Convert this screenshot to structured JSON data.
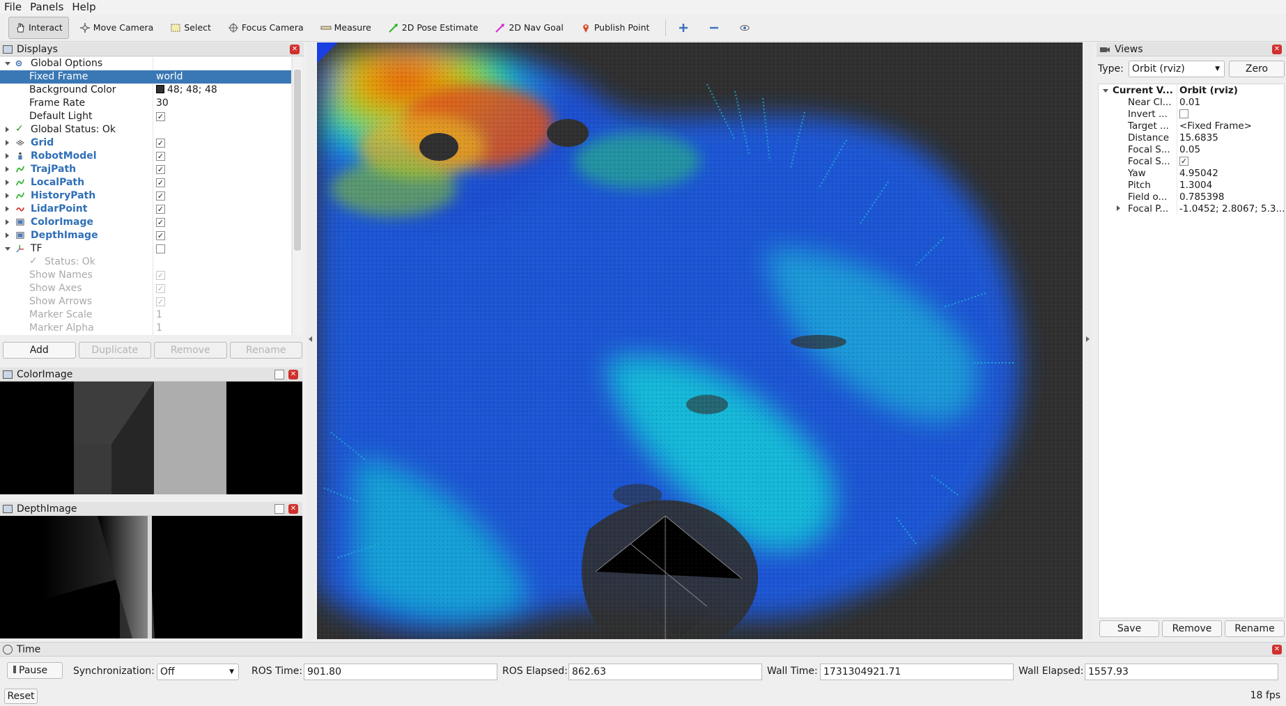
{
  "menu": {
    "file": "File",
    "panels": "Panels",
    "help": "Help"
  },
  "toolbar": {
    "interact": "Interact",
    "move_camera": "Move Camera",
    "select": "Select",
    "focus_camera": "Focus Camera",
    "measure": "Measure",
    "pose_estimate": "2D Pose Estimate",
    "nav_goal": "2D Nav Goal",
    "publish_point": "Publish Point"
  },
  "displays": {
    "title": "Displays",
    "global_options": "Global Options",
    "fixed_frame_label": "Fixed Frame",
    "fixed_frame_value": "world",
    "bg_color_label": "Background Color",
    "bg_color_value": "48; 48; 48",
    "frame_rate_label": "Frame Rate",
    "frame_rate_value": "30",
    "default_light_label": "Default Light",
    "global_status": "Global Status: Ok",
    "items": [
      "Grid",
      "RobotModel",
      "TrajPath",
      "LocalPath",
      "HistoryPath",
      "LidarPoint",
      "ColorImage",
      "DepthImage"
    ],
    "tf": "TF",
    "tf_status": "Status: Ok",
    "show_names": "Show Names",
    "show_axes": "Show Axes",
    "show_arrows": "Show Arrows",
    "marker_scale": "Marker Scale",
    "marker_scale_value": "1",
    "marker_alpha": "Marker Alpha",
    "marker_alpha_value": "1",
    "add": "Add",
    "duplicate": "Duplicate",
    "remove": "Remove",
    "rename": "Rename"
  },
  "color_image": {
    "title": "ColorImage"
  },
  "depth_image": {
    "title": "DepthImage"
  },
  "views": {
    "title": "Views",
    "type_label": "Type:",
    "type_value": "Orbit (rviz)",
    "zero": "Zero",
    "current_label": "Current V...",
    "current_value": "Orbit (rviz)",
    "props": [
      {
        "name": "Near Cl...",
        "value": "0.01"
      },
      {
        "name": "Invert ...",
        "value": ""
      },
      {
        "name": "Target ...",
        "value": "<Fixed Frame>"
      },
      {
        "name": "Distance",
        "value": "15.6835"
      },
      {
        "name": "Focal S...",
        "value": "0.05"
      },
      {
        "name": "Focal S...",
        "value": ""
      },
      {
        "name": "Yaw",
        "value": "4.95042"
      },
      {
        "name": "Pitch",
        "value": "1.3004"
      },
      {
        "name": "Field o...",
        "value": "0.785398"
      },
      {
        "name": "Focal P...",
        "value": "-1.0452; 2.8067; 5.3..."
      }
    ],
    "save": "Save",
    "remove": "Remove",
    "rename": "Rename"
  },
  "time": {
    "title": "Time",
    "pause": "Pause",
    "sync_label": "Synchronization:",
    "sync_value": "Off",
    "ros_time_label": "ROS Time:",
    "ros_time": "901.80",
    "ros_elapsed_label": "ROS Elapsed:",
    "ros_elapsed": "862.63",
    "wall_time_label": "Wall Time:",
    "wall_time": "1731304921.71",
    "wall_elapsed_label": "Wall Elapsed:",
    "wall_elapsed": "1557.93",
    "reset": "Reset",
    "fps": "18 fps"
  },
  "colors": {
    "selection": "#3a78b5",
    "background": "#303030",
    "link": "#2f6fb7"
  }
}
